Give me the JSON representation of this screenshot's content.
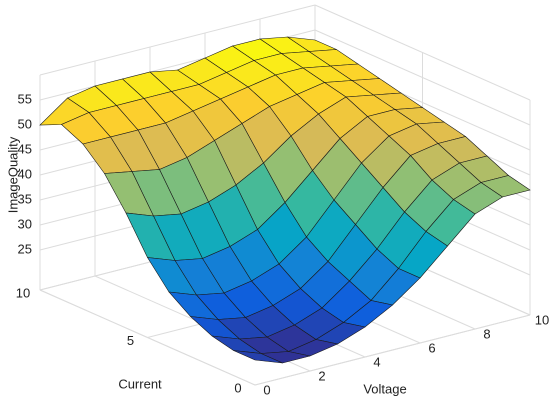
{
  "chart_data": {
    "type": "surface",
    "xlabel": "Voltage",
    "ylabel": "Current",
    "zlabel": "ImageQuality",
    "x": [
      0,
      1,
      2,
      3,
      4,
      5,
      6,
      7,
      8,
      9,
      10
    ],
    "y": [
      0,
      1,
      2,
      3,
      4,
      5,
      6,
      7,
      8,
      9,
      10
    ],
    "z": [
      [
        22,
        20,
        20,
        21,
        23,
        26,
        30,
        35,
        40,
        42,
        42
      ],
      [
        22,
        20,
        19,
        20,
        22,
        25,
        30,
        36,
        41,
        43,
        43
      ],
      [
        23,
        21,
        20,
        21,
        23,
        27,
        32,
        38,
        43,
        45,
        45
      ],
      [
        25,
        23,
        22,
        23,
        25,
        29,
        35,
        41,
        46,
        47,
        47
      ],
      [
        28,
        26,
        25,
        26,
        28,
        32,
        38,
        44,
        48,
        49,
        48
      ],
      [
        33,
        31,
        30,
        31,
        33,
        37,
        42,
        47,
        50,
        50,
        49
      ],
      [
        40,
        38,
        37,
        38,
        40,
        43,
        47,
        50,
        52,
        51,
        50
      ],
      [
        46,
        45,
        44,
        45,
        47,
        49,
        51,
        52,
        53,
        52,
        51
      ],
      [
        50,
        50,
        50,
        50,
        51,
        52,
        53,
        54,
        54,
        53,
        52
      ],
      [
        52,
        53,
        53,
        53,
        53,
        53,
        54,
        55,
        55,
        54,
        53
      ],
      [
        50,
        54,
        55,
        55,
        55,
        54,
        55,
        56,
        56,
        55,
        53
      ]
    ],
    "xlim": [
      0,
      10
    ],
    "ylim": [
      0,
      10
    ],
    "zlim": [
      17,
      60
    ],
    "xticks": [
      0,
      2,
      4,
      6,
      8,
      10
    ],
    "yticks": [
      0,
      5,
      10
    ],
    "zticks": [
      25,
      30,
      35,
      40,
      45,
      50,
      55
    ],
    "grid": true,
    "colormap": [
      "#352a87",
      "#0f5cdd",
      "#1481d6",
      "#06a7c6",
      "#38b99e",
      "#92bf73",
      "#d9ba56",
      "#fcce2e",
      "#f9fb0e"
    ]
  }
}
